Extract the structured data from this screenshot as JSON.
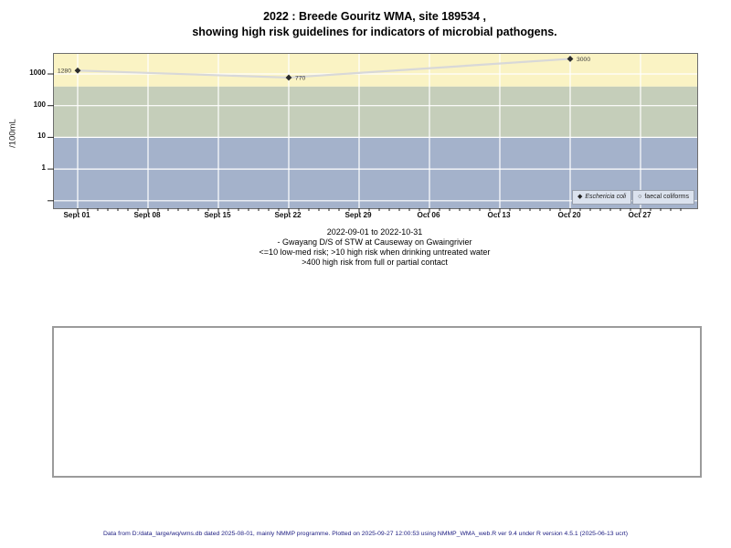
{
  "page": {
    "title_line1": "2022 : Breede Gouritz WMA, site 189534 ,",
    "title_line2": "showing high risk guidelines for indicators of microbial pathogens.",
    "footer": "Data from D:/data_large/wq/wms.db dated 2025-08-01, mainly NMMP programme. Plotted on 2025-09-27 12:00:53 using NMMP_WMA_web.R ver 9.4 under R version 4.5.1 (2025-06-13 ucrt)"
  },
  "chart_data": {
    "type": "line",
    "title": "2022 : Breede Gouritz WMA, site 189534 , showing high risk guidelines for indicators of microbial pathogens.",
    "ylabel": "/100mL",
    "xlabel": "",
    "y_scale": "log10",
    "ylim": [
      0.05,
      4500
    ],
    "grid": true,
    "grid_color": "#FFFFFF",
    "plot_border_color": "#6e6e6e",
    "y_ticks": [
      {
        "value": 1000,
        "label": "1000"
      },
      {
        "value": 100,
        "label": "100"
      },
      {
        "value": 10,
        "label": "10"
      },
      {
        "value": 1,
        "label": "1"
      },
      {
        "value": 0.1,
        "label": ""
      }
    ],
    "x_ticks": [
      "Sept 01",
      "Sept 08",
      "Sept 15",
      "Sept 22",
      "Sept 29",
      "Oct 06",
      "Oct 13",
      "Oct 20",
      "Oct 27"
    ],
    "x_minor_tick_interval_days": 1,
    "x_range_days": 60,
    "bands": [
      {
        "name": "high-risk-band",
        "color": "#FAF3C4",
        "from": 400,
        "to": 4500
      },
      {
        "name": "medium-risk-band",
        "color": "#C5CEBA",
        "from": 10,
        "to": 400
      },
      {
        "name": "low-risk-band",
        "color": "#A4B2CB",
        "from": 0.05,
        "to": 10
      }
    ],
    "series": [
      {
        "name": "Eschericia coli",
        "marker": "filled-diamond",
        "marker_color": "#2B2B2B",
        "line_color": "#D8D8D8",
        "label_color": "#3A3A3A",
        "points": [
          {
            "date": "Sept 01",
            "day": 0,
            "value": 1280,
            "label": "1280",
            "label_side": "left"
          },
          {
            "date": "Sept 22",
            "day": 21,
            "value": 770,
            "label": "770",
            "label_side": "right"
          },
          {
            "date": "Oct 20",
            "day": 49,
            "value": 3000,
            "label": "3000",
            "label_side": "right"
          }
        ]
      },
      {
        "name": "faecal coliforms",
        "marker": "open-circle",
        "marker_color": "#2B2B2B",
        "points": []
      }
    ],
    "legend": {
      "position": "bottom-right",
      "bg": "#DBE2EE",
      "border": "#99A0AC",
      "items": [
        {
          "label": "Eschericia coli",
          "marker": "filled-diamond",
          "italic": true
        },
        {
          "label": "faecal coliforms",
          "marker": "open-circle",
          "italic": false
        }
      ]
    },
    "subtitle_lines": [
      "2022-09-01 to 2022-10-31",
      "- Gwayang D/S of STW at Causeway on Gwaingrivier",
      "<=10 low-med risk; >10 high risk when drinking untreated water",
      ">400 high risk from full or partial contact"
    ]
  }
}
